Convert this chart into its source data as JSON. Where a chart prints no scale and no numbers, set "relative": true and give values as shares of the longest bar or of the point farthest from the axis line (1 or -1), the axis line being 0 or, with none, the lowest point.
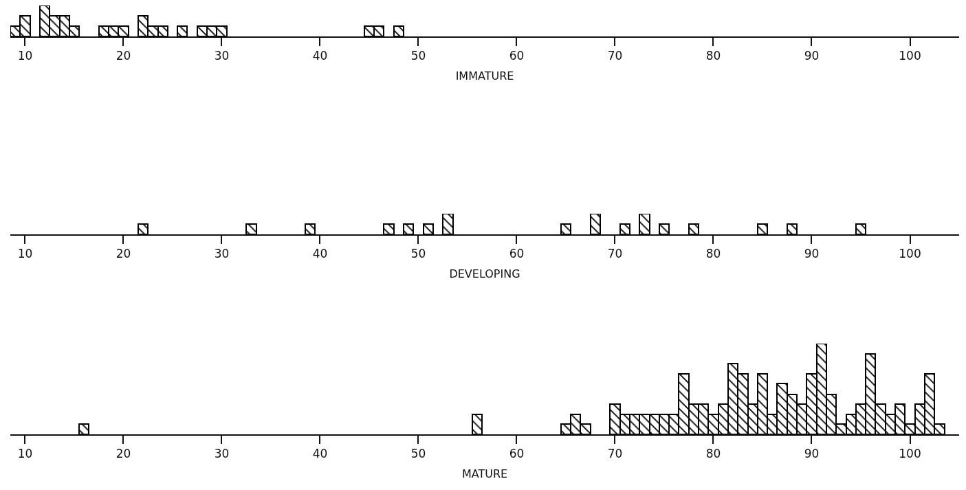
{
  "chart_data": [
    {
      "type": "bar",
      "relative": true,
      "xlabel": "IMMATURE",
      "color": "#000000",
      "x": [
        9,
        10,
        12,
        13,
        14,
        15,
        18,
        19,
        20,
        22,
        23,
        24,
        26,
        28,
        29,
        30,
        45,
        46,
        48
      ],
      "values": [
        0.33,
        0.67,
        1,
        0.67,
        0.67,
        0.33,
        0.33,
        0.33,
        0.33,
        0.67,
        0.33,
        0.33,
        0.33,
        0.33,
        0.33,
        0.33,
        0.33,
        0.33,
        0.33
      ],
      "xlim": [
        8.5,
        105
      ],
      "xticks": [
        10,
        20,
        30,
        40,
        50,
        60,
        70,
        80,
        90,
        100
      ]
    },
    {
      "type": "bar",
      "relative": true,
      "xlabel": "DEVELOPING",
      "color": "#000000",
      "x": [
        22,
        33,
        39,
        47,
        49,
        51,
        53,
        65,
        68,
        71,
        73,
        75,
        78,
        85,
        88,
        95
      ],
      "values": [
        0.5,
        0.5,
        0.5,
        0.5,
        0.5,
        0.5,
        1,
        0.5,
        1,
        0.5,
        1,
        0.5,
        0.5,
        0.5,
        0.5,
        0.5
      ],
      "xlim": [
        8.5,
        105
      ],
      "xticks": [
        10,
        20,
        30,
        40,
        50,
        60,
        70,
        80,
        90,
        100
      ]
    },
    {
      "type": "bar",
      "relative": true,
      "xlabel": "MATURE",
      "color": "#000000",
      "x": [
        16,
        56,
        65,
        66,
        67,
        70,
        71,
        72,
        73,
        74,
        75,
        76,
        77,
        78,
        79,
        80,
        81,
        82,
        83,
        84,
        85,
        86,
        87,
        88,
        89,
        90,
        91,
        92,
        93,
        94,
        95,
        96,
        97,
        98,
        99,
        100,
        101,
        102,
        103
      ],
      "values": [
        0.11,
        0.22,
        0.11,
        0.22,
        0.11,
        0.33,
        0.22,
        0.22,
        0.22,
        0.22,
        0.22,
        0.22,
        0.67,
        0.33,
        0.33,
        0.22,
        0.33,
        0.78,
        0.67,
        0.33,
        0.67,
        0.22,
        0.56,
        0.44,
        0.33,
        0.67,
        1,
        0.44,
        0.11,
        0.22,
        0.33,
        0.89,
        0.33,
        0.22,
        0.33,
        0.11,
        0.33,
        0.67,
        0.11
      ],
      "xlim": [
        8.5,
        105
      ],
      "xticks": [
        10,
        20,
        30,
        40,
        50,
        60,
        70,
        80,
        90,
        100
      ]
    }
  ]
}
